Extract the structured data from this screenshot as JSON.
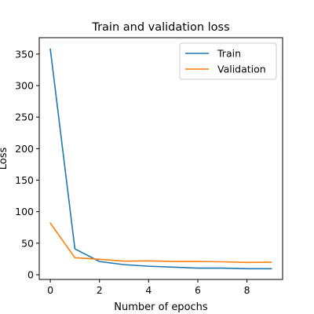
{
  "chart_data": {
    "type": "line",
    "title": "Train and validation loss",
    "xlabel": "Number of epochs",
    "ylabel": "Loss",
    "x": [
      0,
      1,
      2,
      3,
      4,
      5,
      6,
      7,
      8,
      9
    ],
    "xlim": [
      -0.45,
      9.45
    ],
    "ylim": [
      -7.5,
      376
    ],
    "xticks": [
      0,
      2,
      4,
      6,
      8
    ],
    "yticks": [
      0,
      50,
      100,
      150,
      200,
      250,
      300,
      350
    ],
    "grid": false,
    "legend_position": "top-right",
    "series": [
      {
        "name": "Train",
        "color": "#1f77b4",
        "values": [
          358,
          41,
          21,
          16,
          13.5,
          12,
          10.5,
          10.5,
          9.5,
          9.5
        ]
      },
      {
        "name": "Validation",
        "color": "#ff7f0e",
        "values": [
          82,
          27,
          24.5,
          21.5,
          22,
          21,
          21,
          20.5,
          19.5,
          20
        ]
      }
    ]
  }
}
